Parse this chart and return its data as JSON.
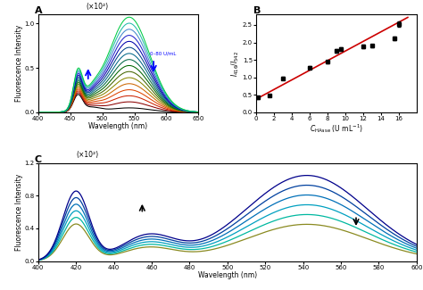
{
  "panel_A": {
    "label": "A",
    "xlabel": "Wavelength (nm)",
    "ylabel": "Fluorescence Intensity",
    "ylabel_scale": "(×10²)",
    "xlim": [
      400,
      650
    ],
    "ylim": [
      0.0,
      1.1
    ],
    "yticks": [
      0.0,
      0.5,
      1.0
    ],
    "xticks": [
      400,
      450,
      500,
      550,
      600,
      650
    ],
    "annotation": "0–80 U/mL",
    "n_curves": 16,
    "colors": [
      "#000000",
      "#8b0000",
      "#cc2200",
      "#dd4400",
      "#cc6600",
      "#888800",
      "#446600",
      "#006600",
      "#006644",
      "#006688",
      "#004488",
      "#0000aa",
      "#2222cc",
      "#4488cc",
      "#22bbaa",
      "#00cc44"
    ]
  },
  "panel_B": {
    "label": "B",
    "xlim": [
      0,
      18
    ],
    "ylim": [
      0.0,
      2.8
    ],
    "yticks": [
      0.0,
      0.5,
      1.0,
      1.5,
      2.0,
      2.5
    ],
    "xticks": [
      0,
      2,
      4,
      6,
      8,
      10,
      12,
      14,
      16
    ],
    "x_data": [
      0.2,
      1.5,
      3.0,
      6.0,
      8.0,
      9.0,
      9.5,
      12.0,
      13.0,
      15.5,
      16.0
    ],
    "y_data": [
      0.42,
      0.48,
      0.97,
      1.28,
      1.45,
      1.76,
      1.8,
      1.88,
      1.9,
      2.12,
      2.52
    ],
    "fit_slope": 0.1375,
    "fit_intercept": 0.38,
    "line_color": "#cc0000",
    "marker_color": "#000000"
  },
  "panel_C": {
    "label": "C",
    "xlabel": "Wavelength (nm)",
    "ylabel": "Fluorescence Intensity",
    "ylabel_scale": "(×10²)",
    "xlim": [
      400,
      600
    ],
    "ylim": [
      0.0,
      1.2
    ],
    "yticks": [
      0.0,
      0.4,
      0.8,
      1.2
    ],
    "xticks": [
      400,
      420,
      440,
      460,
      480,
      500,
      520,
      540,
      560,
      580,
      600
    ],
    "n_curves": 6,
    "colors": [
      "#00008b",
      "#00409f",
      "#0070b8",
      "#00a0c0",
      "#00b8a0",
      "#8a8a20"
    ]
  }
}
